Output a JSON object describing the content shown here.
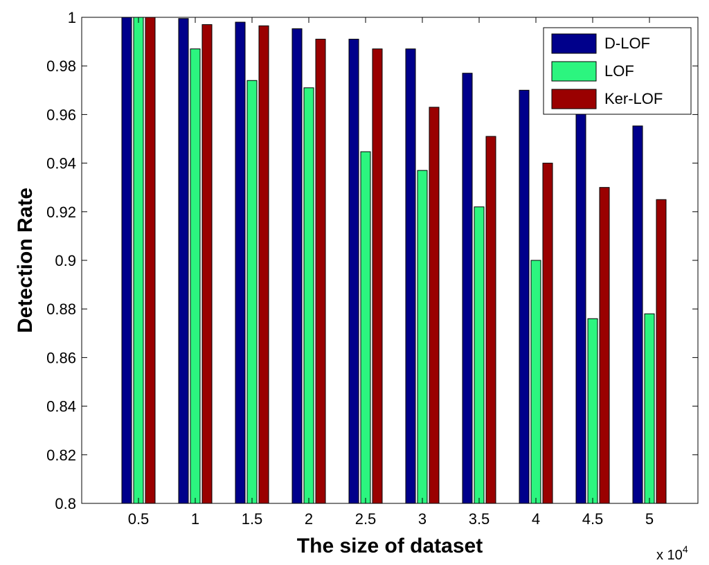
{
  "chart_data": {
    "type": "bar",
    "title": "",
    "xlabel": "The size of dataset",
    "ylabel": "Detection Rate",
    "x_exponent_prefix": "x 10",
    "x_exponent_power": "4",
    "categories": [
      "0.5",
      "1",
      "1.5",
      "2",
      "2.5",
      "3",
      "3.5",
      "4",
      "4.5",
      "5"
    ],
    "ylim": [
      0.8,
      1.0
    ],
    "yticks": [
      "0.8",
      "0.82",
      "0.84",
      "0.86",
      "0.88",
      "0.9",
      "0.92",
      "0.94",
      "0.96",
      "0.98",
      "1"
    ],
    "grid": false,
    "legend_position": "top-right",
    "series": [
      {
        "name": "D-LOF",
        "color": "#00008b",
        "values": [
          1.0,
          0.9995,
          0.998,
          0.9953,
          0.991,
          0.987,
          0.977,
          0.97,
          0.962,
          0.9553
        ]
      },
      {
        "name": "LOF",
        "color": "#2cf57f",
        "values": [
          1.0,
          0.987,
          0.974,
          0.971,
          0.9447,
          0.937,
          0.922,
          0.9,
          0.876,
          0.878
        ]
      },
      {
        "name": "Ker-LOF",
        "color": "#9a0000",
        "values": [
          1.0,
          0.997,
          0.9965,
          0.991,
          0.987,
          0.963,
          0.951,
          0.94,
          0.93,
          0.925
        ]
      }
    ]
  }
}
